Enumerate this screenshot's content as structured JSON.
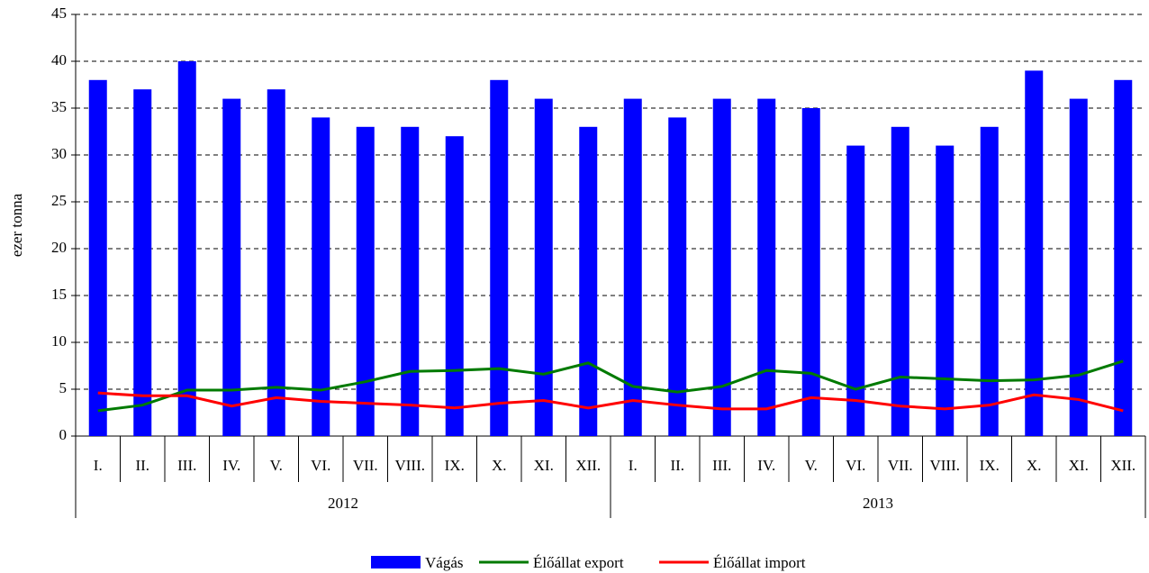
{
  "chart_data": {
    "type": "bar_line",
    "y_label": "ezer tonna",
    "categories": [
      "I.",
      "II.",
      "III.",
      "IV.",
      "V.",
      "VI.",
      "VII.",
      "VIII.",
      "IX.",
      "X.",
      "XI.",
      "XII.",
      "I.",
      "II.",
      "III.",
      "IV.",
      "V.",
      "VI.",
      "VII.",
      "VIII.",
      "IX.",
      "X.",
      "XI.",
      "XII."
    ],
    "years": [
      "2012",
      "2013"
    ],
    "series": [
      {
        "name": "Vágás",
        "kind": "bar",
        "color": "#0000ff",
        "values": [
          38,
          37,
          40,
          36,
          37,
          34,
          33,
          33,
          32,
          38,
          36,
          33,
          36,
          34,
          36,
          36,
          35,
          31,
          33,
          31,
          33,
          39,
          36,
          38
        ]
      },
      {
        "name": "Élőállat export",
        "kind": "line",
        "color": "#007a00",
        "values": [
          2.7,
          3.3,
          4.9,
          4.9,
          5.2,
          4.9,
          5.8,
          6.9,
          7.0,
          7.2,
          6.6,
          7.8,
          5.3,
          4.7,
          5.3,
          7.0,
          6.7,
          5.0,
          6.3,
          6.1,
          5.9,
          6.0,
          6.5,
          8.0
        ]
      },
      {
        "name": "Élőállat import",
        "kind": "line",
        "color": "#ff0000",
        "values": [
          4.6,
          4.3,
          4.3,
          3.2,
          4.1,
          3.7,
          3.5,
          3.3,
          3.0,
          3.5,
          3.8,
          3.0,
          3.8,
          3.3,
          2.9,
          2.9,
          4.1,
          3.8,
          3.2,
          2.9,
          3.3,
          4.4,
          3.9,
          2.7
        ]
      }
    ],
    "ylim": [
      0,
      45
    ],
    "yticks": [
      0,
      5,
      10,
      15,
      20,
      25,
      30,
      35,
      40,
      45
    ],
    "grid": true
  }
}
